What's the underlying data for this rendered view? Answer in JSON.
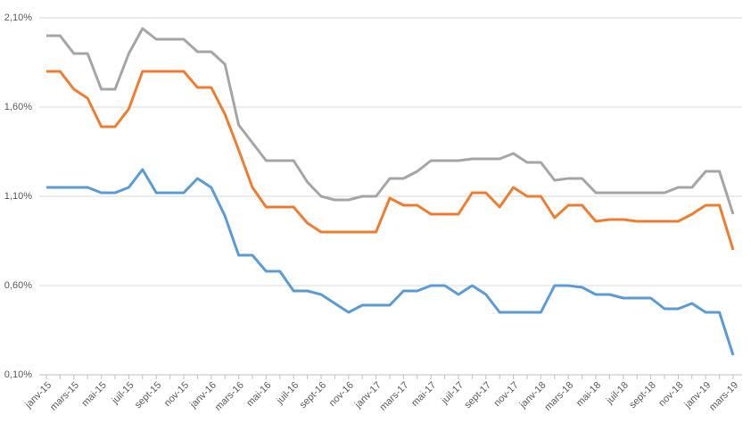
{
  "chart_data": {
    "type": "line",
    "categories": [
      "janv-15",
      null,
      "mars-15",
      null,
      "mai-15",
      null,
      "juil-15",
      null,
      "sept-15",
      null,
      "nov-15",
      null,
      "janv-16",
      null,
      "mars-16",
      null,
      "mai-16",
      null,
      "juil-16",
      null,
      "sept-16",
      null,
      "nov-16",
      null,
      "janv-17",
      null,
      "mars-17",
      null,
      "mai-17",
      null,
      "juil-17",
      null,
      "sept-17",
      null,
      "nov-17",
      null,
      "janv-18",
      null,
      "mars-18",
      null,
      "mai-18",
      null,
      "juil-18",
      null,
      "sept-18",
      null,
      "nov-18",
      null,
      "janv-19",
      null,
      "mars-19"
    ],
    "series": [
      {
        "color": "#a5a5a5",
        "values": [
          2.0,
          2.0,
          1.9,
          1.9,
          1.7,
          1.7,
          1.9,
          2.04,
          1.98,
          1.98,
          1.98,
          1.91,
          1.91,
          1.84,
          1.5,
          1.4,
          1.3,
          1.3,
          1.3,
          1.18,
          1.1,
          1.08,
          1.08,
          1.1,
          1.1,
          1.2,
          1.2,
          1.24,
          1.3,
          1.3,
          1.3,
          1.31,
          1.31,
          1.31,
          1.34,
          1.29,
          1.29,
          1.19,
          1.2,
          1.2,
          1.12,
          1.12,
          1.12,
          1.12,
          1.12,
          1.12,
          1.15,
          1.15,
          1.24,
          1.24,
          1.0
        ]
      },
      {
        "color": "#ed7d31",
        "values": [
          1.8,
          1.8,
          1.7,
          1.65,
          1.49,
          1.49,
          1.59,
          1.8,
          1.8,
          1.8,
          1.8,
          1.71,
          1.71,
          1.56,
          1.36,
          1.15,
          1.04,
          1.04,
          1.04,
          0.95,
          0.9,
          0.9,
          0.9,
          0.9,
          0.9,
          1.09,
          1.05,
          1.05,
          1.0,
          1.0,
          1.0,
          1.12,
          1.12,
          1.04,
          1.15,
          1.1,
          1.1,
          0.98,
          1.05,
          1.05,
          0.96,
          0.97,
          0.97,
          0.96,
          0.96,
          0.96,
          0.96,
          1.0,
          1.05,
          1.05,
          0.8
        ]
      },
      {
        "color": "#5b9bd5",
        "values": [
          1.15,
          1.15,
          1.15,
          1.15,
          1.12,
          1.12,
          1.15,
          1.25,
          1.12,
          1.12,
          1.12,
          1.2,
          1.15,
          0.99,
          0.77,
          0.77,
          0.68,
          0.68,
          0.57,
          0.57,
          0.55,
          0.5,
          0.45,
          0.49,
          0.49,
          0.49,
          0.57,
          0.57,
          0.6,
          0.6,
          0.55,
          0.6,
          0.55,
          0.45,
          0.45,
          0.45,
          0.45,
          0.6,
          0.6,
          0.59,
          0.55,
          0.55,
          0.53,
          0.53,
          0.53,
          0.47,
          0.47,
          0.5,
          0.45,
          0.45,
          0.21
        ]
      }
    ],
    "ylim": [
      0.1,
      2.1
    ],
    "yticks": [
      {
        "value": 0.1,
        "label": "0,10%"
      },
      {
        "value": 0.6,
        "label": "0,60%"
      },
      {
        "value": 1.1,
        "label": "1,10%"
      },
      {
        "value": 1.6,
        "label": "1,60%"
      },
      {
        "value": 2.1,
        "label": "2,10%"
      }
    ],
    "grid": true
  }
}
